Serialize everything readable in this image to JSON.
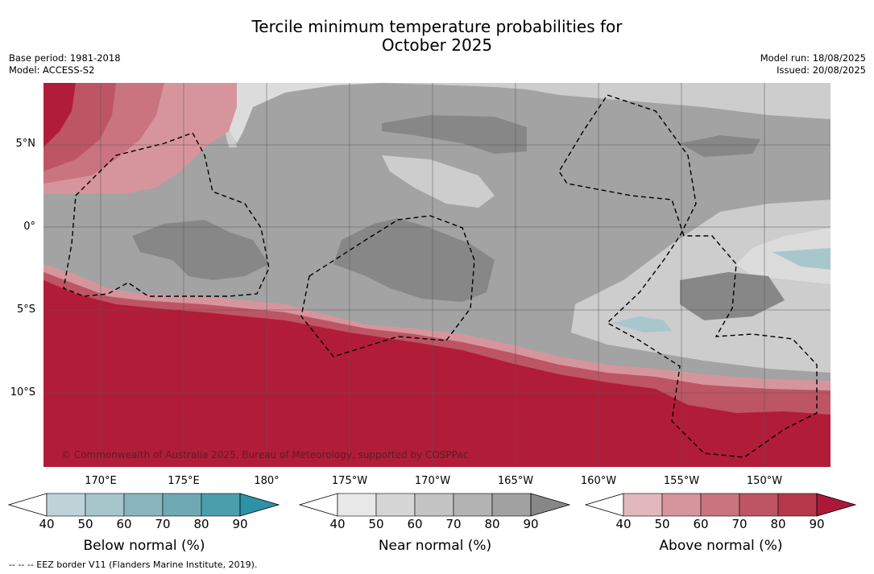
{
  "header": {
    "title_line1": "Tercile minimum temperature probabilities for",
    "title_line2": "October 2025",
    "base_period": "Base period: 1981-2018",
    "model": "Model: ACCESS-S2",
    "model_run": "Model run: 18/08/2025",
    "issued": "Issued: 20/08/2025"
  },
  "map": {
    "lat_labels": [
      "5°N",
      "0°",
      "5°S",
      "10°S"
    ],
    "lon_labels": [
      "170°E",
      "175°E",
      "180°",
      "175°W",
      "170°W",
      "165°W",
      "160°W",
      "155°W",
      "150°W"
    ],
    "copyright": "© Commonwealth of Australia 2025, Bureau of Meteorology, supported by COSPPac",
    "colors": {
      "above_strong": "#b11c39",
      "near_90": "#878787",
      "near_80": "#a3a3a3",
      "near_60": "#cdcdcd",
      "near_50": "#dcdcdc",
      "below_60": "#a8c7cc"
    }
  },
  "colorbars": [
    {
      "name": "below",
      "label": "Below normal (%)",
      "ticks": [
        "40",
        "50",
        "60",
        "70",
        "80",
        "90"
      ],
      "colors": [
        "#bdd3d8",
        "#a6c6cb",
        "#89b6be",
        "#6ea9b4",
        "#4b9fad",
        "#2c93a6"
      ]
    },
    {
      "name": "near",
      "label": "Near normal (%)",
      "ticks": [
        "40",
        "50",
        "60",
        "70",
        "80",
        "90"
      ],
      "colors": [
        "#e8e8e8",
        "#d6d6d6",
        "#c4c4c4",
        "#b3b3b3",
        "#a1a1a1",
        "#878787"
      ]
    },
    {
      "name": "above",
      "label": "Above normal (%)",
      "ticks": [
        "40",
        "50",
        "60",
        "70",
        "80",
        "90"
      ],
      "colors": [
        "#e2b7bd",
        "#d6959c",
        "#c9747f",
        "#be5564",
        "#b6384a",
        "#ab1838"
      ]
    }
  ],
  "footnote": "--  --  -- EEZ border V11 (Flanders Marine Institute, 2019)."
}
